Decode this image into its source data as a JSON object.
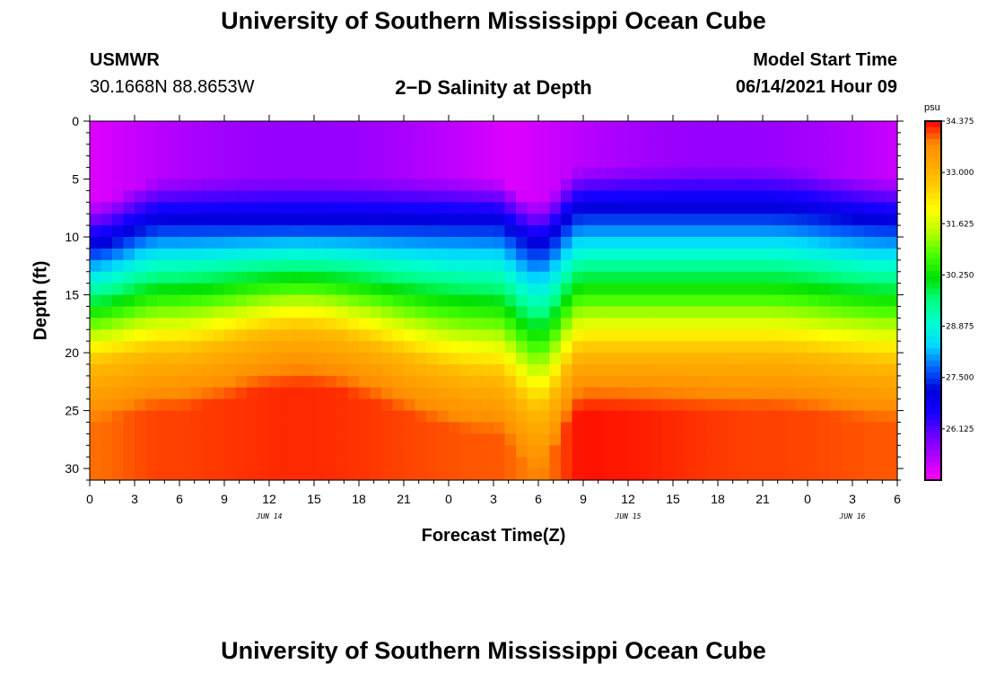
{
  "header": {
    "title_top": "University of Southern Mississippi Ocean Cube",
    "title_bottom": "University of Southern Mississippi Ocean Cube",
    "station": "USMWR",
    "coords": "30.1668N  88.8653W",
    "plot_title": "2−D Salinity at Depth",
    "model_start_label": "Model Start Time",
    "model_start_value": "06/14/2021 Hour 09"
  },
  "chart_data": {
    "type": "heatmap",
    "title": "2−D Salinity at Depth",
    "xlabel": "Forecast Time(Z)",
    "ylabel": "Depth (ft)",
    "x_tick_labels": [
      "0",
      "3",
      "6",
      "9",
      "12",
      "15",
      "18",
      "21",
      "0",
      "3",
      "6",
      "9",
      "12",
      "15",
      "18",
      "21",
      "0",
      "3",
      "6"
    ],
    "day_labels": [
      "JUN 14",
      "JUN 15",
      "JUN 16"
    ],
    "day_label_hours": [
      12,
      36,
      51
    ],
    "x_range_hours": [
      0,
      54
    ],
    "y_tick_labels": [
      "0",
      "5",
      "10",
      "15",
      "20",
      "25",
      "30"
    ],
    "y_range_ft": [
      0,
      31
    ],
    "colorbar": {
      "unit": "psu",
      "range": [
        24.75,
        34.375
      ],
      "ticks": [
        "34.375",
        "33.000",
        "31.625",
        "30.250",
        "28.875",
        "27.500",
        "26.125"
      ],
      "tick_values": [
        34.375,
        33.0,
        31.625,
        30.25,
        28.875,
        27.5,
        26.125
      ],
      "colors": [
        "#ff00ff",
        "#b300ff",
        "#6a00ff",
        "#1400ff",
        "#0000d8",
        "#0064ff",
        "#00d8ff",
        "#00ffd0",
        "#00ff82",
        "#00e000",
        "#46ff00",
        "#b4ff00",
        "#ffff00",
        "#ffd000",
        "#ffaa00",
        "#ff8c00",
        "#ff0000"
      ]
    },
    "description_points": [
      {
        "hour": 0,
        "halocline_top_ft": 11,
        "halocline_bottom_ft": 21,
        "deep_salinity_psu": 33.9
      },
      {
        "hour": 5,
        "halocline_top_ft": 9,
        "halocline_bottom_ft": 20,
        "deep_salinity_psu": 34.1
      },
      {
        "hour": 14,
        "halocline_top_ft": 9,
        "halocline_bottom_ft": 18,
        "deep_salinity_psu": 34.2
      },
      {
        "hour": 27,
        "halocline_top_ft": 9,
        "halocline_bottom_ft": 22,
        "deep_salinity_psu": 34.0
      },
      {
        "hour": 30,
        "halocline_top_ft": 11,
        "halocline_bottom_ft": 25,
        "deep_salinity_psu": 33.8
      },
      {
        "hour": 33,
        "halocline_top_ft": 8,
        "halocline_bottom_ft": 20,
        "deep_salinity_psu": 34.3
      },
      {
        "hour": 45,
        "halocline_top_ft": 8,
        "halocline_bottom_ft": 20,
        "deep_salinity_psu": 34.1
      },
      {
        "hour": 54,
        "halocline_top_ft": 9,
        "halocline_bottom_ft": 21,
        "deep_salinity_psu": 34.0
      }
    ]
  }
}
